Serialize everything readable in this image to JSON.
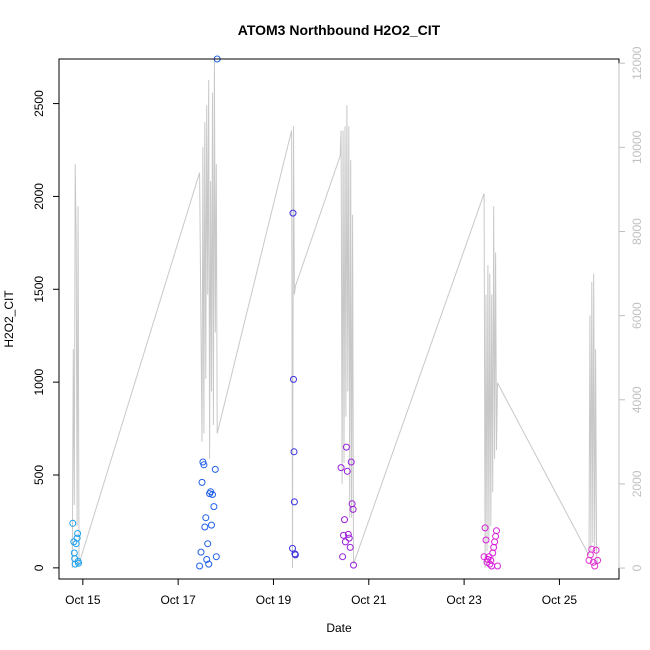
{
  "chart_data": {
    "type": "scatter",
    "title": "ATOM3 Northbound H2O2_CIT",
    "xlabel": "Date",
    "ylabel": "H2O2_CIT",
    "x_unit": "day-of-October",
    "xlim": [
      14.5,
      26.25
    ],
    "ylim": [
      -60,
      2740
    ],
    "x_ticks": [
      {
        "value": 15,
        "label": "Oct 15"
      },
      {
        "value": 17,
        "label": "Oct 17"
      },
      {
        "value": 19,
        "label": "Oct 19"
      },
      {
        "value": 21,
        "label": "Oct 21"
      },
      {
        "value": 23,
        "label": "Oct 23"
      },
      {
        "value": 25,
        "label": "Oct 25"
      }
    ],
    "y_ticks": [
      0,
      500,
      1000,
      1500,
      2000,
      2500
    ],
    "y2_ticks": [
      0,
      2000,
      4000,
      6000,
      8000,
      10000,
      12000
    ],
    "y2lim": [
      -260,
      12100
    ],
    "grid": false,
    "legend": "none",
    "colors": {
      "altitude_line": "#c8c8c8",
      "points": [
        "#1ea0ef",
        "#2060e8",
        "#3a30e0",
        "#9a20d8",
        "#d820d8",
        "#e030d0"
      ]
    },
    "series": [
      {
        "color": "#1ea0ef",
        "x": [
          14.79,
          14.81,
          14.82,
          14.83,
          14.84,
          14.86,
          14.88,
          14.89,
          14.9,
          14.91
        ],
        "y": [
          240,
          140,
          80,
          50,
          20,
          130,
          160,
          185,
          35,
          25
        ]
      },
      {
        "color": "#2060e8",
        "x": [
          17.45,
          17.48,
          17.5,
          17.52,
          17.54,
          17.56,
          17.58,
          17.6,
          17.62,
          17.64,
          17.66,
          17.68,
          17.7,
          17.72,
          17.75,
          17.78,
          17.8,
          17.82
        ],
        "y": [
          10,
          85,
          460,
          570,
          555,
          220,
          270,
          45,
          130,
          20,
          400,
          410,
          230,
          395,
          330,
          530,
          60,
          2740
        ]
      },
      {
        "color": "#3a30e0",
        "x": [
          19.4,
          19.41,
          19.42,
          19.43,
          19.44,
          19.45,
          19.46
        ],
        "y": [
          105,
          1910,
          1015,
          625,
          355,
          75,
          70
        ]
      },
      {
        "color": "#9a20d8",
        "x": [
          20.42,
          20.45,
          20.47,
          20.49,
          20.51,
          20.53,
          20.55,
          20.57,
          20.59,
          20.61,
          20.63,
          20.65,
          20.67
        ],
        "y": [
          540,
          60,
          175,
          260,
          140,
          650,
          520,
          180,
          160,
          110,
          570,
          345,
          315
        ]
      },
      {
        "color": "#9a20d8",
        "x": [
          20.68
        ],
        "y": [
          15
        ]
      },
      {
        "color": "#d820d8",
        "x": [
          23.42,
          23.44,
          23.46,
          23.48,
          23.5,
          23.52,
          23.54,
          23.56,
          23.58,
          23.6,
          23.62,
          23.64,
          23.66,
          23.68,
          23.7
        ],
        "y": [
          60,
          215,
          150,
          30,
          45,
          60,
          20,
          40,
          10,
          80,
          110,
          140,
          170,
          200,
          10
        ]
      },
      {
        "color": "#e030d0",
        "x": [
          25.62,
          25.65,
          25.68,
          25.71,
          25.74,
          25.77,
          25.8
        ],
        "y": [
          40,
          70,
          100,
          30,
          10,
          95,
          40
        ]
      }
    ],
    "altitude_line": {
      "x": [
        14.78,
        14.8,
        14.82,
        14.84,
        14.86,
        14.88,
        14.9,
        14.92,
        17.45,
        17.5,
        17.52,
        17.54,
        17.56,
        17.58,
        17.6,
        17.62,
        17.64,
        17.66,
        17.68,
        17.7,
        17.72,
        17.74,
        17.76,
        17.78,
        17.8,
        17.82,
        17.84,
        19.38,
        19.4,
        19.42,
        19.44,
        19.46,
        20.4,
        20.42,
        20.44,
        20.46,
        20.48,
        20.5,
        20.52,
        20.54,
        20.56,
        20.58,
        20.6,
        20.62,
        20.64,
        20.66,
        20.68,
        23.42,
        23.44,
        23.46,
        23.48,
        23.5,
        23.52,
        23.54,
        23.56,
        23.58,
        23.6,
        23.62,
        23.64,
        23.66,
        23.68,
        23.7,
        25.62,
        25.64,
        25.66,
        25.68,
        25.7,
        25.72,
        25.74,
        25.76,
        25.78,
        25.8
      ],
      "y2": [
        0,
        5200,
        1500,
        9600,
        7800,
        1000,
        8600,
        100,
        9400,
        3000,
        10000,
        3200,
        10600,
        4500,
        11000,
        6500,
        11600,
        2600,
        9200,
        4200,
        11300,
        3400,
        12100,
        5600,
        9600,
        3200,
        3300,
        10400,
        0,
        10500,
        6500,
        6700,
        9800,
        10400,
        2000,
        10400,
        2500,
        10500,
        3600,
        11000,
        4200,
        10500,
        1200,
        9700,
        1200,
        8400,
        100,
        8900,
        0,
        6500,
        400,
        7200,
        700,
        7000,
        1000,
        6500,
        1800,
        8600,
        2600,
        7500,
        2800,
        4400,
        300,
        6000,
        400,
        6800,
        600,
        7000,
        500,
        5200,
        300,
        100
      ]
    }
  }
}
